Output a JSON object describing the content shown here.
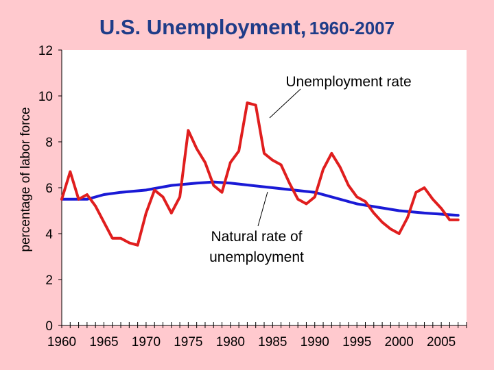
{
  "colors": {
    "background": "#FFC9CE",
    "plot_background": "#FFFFFF",
    "title": "#1F3C88",
    "unemployment_line": "#E01E1E",
    "natural_rate_line": "#1A1AD6"
  },
  "chart_data": {
    "type": "line",
    "title_main": "U.S. Unemployment,",
    "title_years": "1960-2007",
    "xlabel": "",
    "ylabel": "percentage of labor force",
    "xlim": [
      1960,
      2008
    ],
    "ylim": [
      0,
      12
    ],
    "x_ticks": [
      1960,
      1965,
      1970,
      1975,
      1980,
      1985,
      1990,
      1995,
      2000,
      2005
    ],
    "x_tick_labels": [
      "1960",
      "1965",
      "1970",
      "1975",
      "1980",
      "1985",
      "1990",
      "1995",
      "2000",
      "2005"
    ],
    "y_ticks": [
      0,
      2,
      4,
      6,
      8,
      10,
      12
    ],
    "y_tick_labels": [
      "0",
      "2",
      "4",
      "6",
      "8",
      "10",
      "12"
    ],
    "grid": false,
    "legend": "none",
    "series": [
      {
        "name": "Unemployment rate",
        "color": "#E01E1E",
        "x": [
          1960,
          1961,
          1962,
          1963,
          1964,
          1965,
          1966,
          1967,
          1968,
          1969,
          1970,
          1971,
          1972,
          1973,
          1974,
          1975,
          1976,
          1977,
          1978,
          1979,
          1980,
          1981,
          1982,
          1983,
          1984,
          1985,
          1986,
          1987,
          1988,
          1989,
          1990,
          1991,
          1992,
          1993,
          1994,
          1995,
          1996,
          1997,
          1998,
          1999,
          2000,
          2001,
          2002,
          2003,
          2004,
          2005,
          2006,
          2007
        ],
        "values": [
          5.5,
          6.7,
          5.5,
          5.7,
          5.2,
          4.5,
          3.8,
          3.8,
          3.6,
          3.5,
          4.9,
          5.9,
          5.6,
          4.9,
          5.6,
          8.5,
          7.7,
          7.1,
          6.1,
          5.8,
          7.1,
          7.6,
          9.7,
          9.6,
          7.5,
          7.2,
          7.0,
          6.2,
          5.5,
          5.3,
          5.6,
          6.8,
          7.5,
          6.9,
          6.1,
          5.6,
          5.4,
          4.9,
          4.5,
          4.2,
          4.0,
          4.7,
          5.8,
          6.0,
          5.5,
          5.1,
          4.6,
          4.6
        ]
      },
      {
        "name": "Natural rate of unemployment",
        "color": "#1A1AD6",
        "x": [
          1960,
          1963,
          1965,
          1967,
          1970,
          1973,
          1976,
          1978,
          1980,
          1985,
          1990,
          1995,
          2000,
          2003,
          2007
        ],
        "values": [
          5.5,
          5.5,
          5.7,
          5.8,
          5.9,
          6.1,
          6.2,
          6.25,
          6.2,
          6.0,
          5.8,
          5.3,
          5.0,
          4.9,
          4.8
        ]
      }
    ],
    "annotations": [
      {
        "text": "Unemployment rate"
      },
      {
        "line1": "Natural rate of",
        "line2": "unemployment"
      }
    ]
  }
}
